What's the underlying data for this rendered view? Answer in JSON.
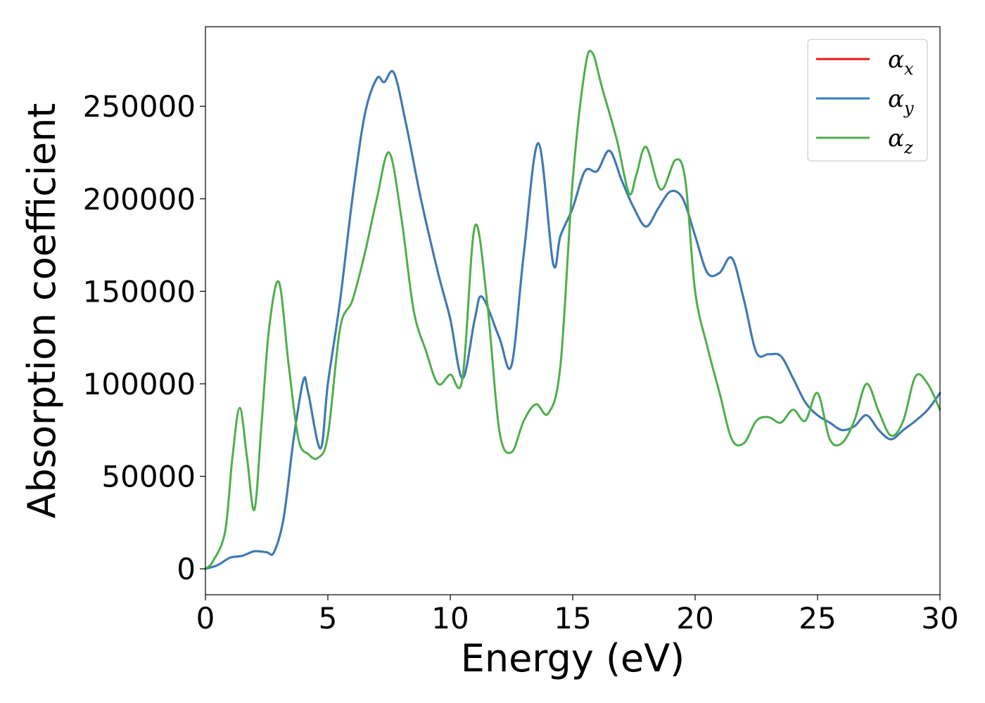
{
  "chart_data": {
    "type": "line",
    "title": "",
    "xlabel": "Energy (eV)",
    "ylabel": "Absorption coefficient",
    "xlim": [
      0,
      30
    ],
    "ylim": [
      -14000,
      293000
    ],
    "xticks": [
      0,
      5,
      10,
      15,
      20,
      25,
      30
    ],
    "yticks": [
      0,
      50000,
      100000,
      150000,
      200000,
      250000
    ],
    "grid": false,
    "legend_position": "top-right",
    "legend": [
      {
        "base": "α",
        "sub": "x",
        "color": "#e41a1c"
      },
      {
        "base": "α",
        "sub": "y",
        "color": "#377eb8"
      },
      {
        "base": "α",
        "sub": "z",
        "color": "#4daf4a"
      }
    ],
    "series": [
      {
        "name": "αx",
        "color": "#e41a1c",
        "x": [
          0.0,
          0.5,
          1.0,
          1.5,
          2.0,
          2.5,
          2.8,
          3.2,
          3.6,
          4.0,
          4.2,
          4.7,
          5.0,
          5.5,
          6.0,
          6.5,
          7.0,
          7.3,
          7.7,
          8.2,
          8.8,
          9.5,
          10.0,
          10.5,
          11.0,
          11.3,
          12.0,
          12.5,
          13.0,
          13.6,
          14.2,
          14.5,
          15.0,
          15.5,
          16.0,
          16.5,
          17.0,
          17.5,
          18.0,
          18.5,
          19.0,
          19.5,
          20.0,
          20.5,
          21.0,
          21.5,
          22.0,
          22.5,
          23.0,
          23.5,
          24.0,
          24.5,
          25.0,
          25.5,
          26.0,
          26.5,
          27.0,
          27.5,
          28.0,
          28.5,
          29.0,
          29.5,
          30.0
        ],
        "values": [
          0,
          2000,
          6000,
          7000,
          9500,
          9000,
          9000,
          28000,
          70000,
          102000,
          95000,
          65000,
          100000,
          145000,
          200000,
          245000,
          265000,
          263000,
          268000,
          240000,
          200000,
          160000,
          135000,
          103000,
          135000,
          147000,
          125000,
          110000,
          170000,
          230000,
          165000,
          180000,
          195000,
          215000,
          215000,
          226000,
          210000,
          195000,
          185000,
          195000,
          204000,
          200000,
          180000,
          160000,
          160000,
          168000,
          145000,
          117000,
          116000,
          115000,
          103000,
          90000,
          83000,
          79000,
          75000,
          77000,
          83000,
          75000,
          70000,
          75000,
          80000,
          86000,
          95000
        ]
      },
      {
        "name": "αy",
        "color": "#377eb8",
        "x": [
          0.0,
          0.5,
          1.0,
          1.5,
          2.0,
          2.5,
          2.8,
          3.2,
          3.6,
          4.0,
          4.2,
          4.7,
          5.0,
          5.5,
          6.0,
          6.5,
          7.0,
          7.3,
          7.7,
          8.2,
          8.8,
          9.5,
          10.0,
          10.5,
          11.0,
          11.3,
          12.0,
          12.5,
          13.0,
          13.6,
          14.2,
          14.5,
          15.0,
          15.5,
          16.0,
          16.5,
          17.0,
          17.5,
          18.0,
          18.5,
          19.0,
          19.5,
          20.0,
          20.5,
          21.0,
          21.5,
          22.0,
          22.5,
          23.0,
          23.5,
          24.0,
          24.5,
          25.0,
          25.5,
          26.0,
          26.5,
          27.0,
          27.5,
          28.0,
          28.5,
          29.0,
          29.5,
          30.0
        ],
        "values": [
          0,
          2000,
          6000,
          7000,
          9500,
          9000,
          9000,
          28000,
          70000,
          102000,
          95000,
          65000,
          100000,
          145000,
          200000,
          245000,
          265000,
          263000,
          268000,
          240000,
          200000,
          160000,
          135000,
          103000,
          135000,
          147000,
          125000,
          110000,
          170000,
          230000,
          165000,
          180000,
          195000,
          215000,
          215000,
          226000,
          210000,
          195000,
          185000,
          195000,
          204000,
          200000,
          180000,
          160000,
          160000,
          168000,
          145000,
          117000,
          116000,
          115000,
          103000,
          90000,
          83000,
          79000,
          75000,
          77000,
          83000,
          75000,
          70000,
          75000,
          80000,
          86000,
          95000
        ]
      },
      {
        "name": "αz",
        "color": "#4daf4a",
        "x": [
          0.0,
          0.3,
          0.8,
          1.1,
          1.4,
          1.7,
          2.0,
          2.3,
          2.6,
          3.0,
          3.4,
          3.8,
          4.2,
          4.6,
          5.0,
          5.5,
          6.0,
          6.5,
          7.0,
          7.5,
          8.0,
          8.5,
          9.0,
          9.5,
          10.0,
          10.5,
          11.0,
          11.5,
          12.0,
          12.5,
          13.0,
          13.5,
          14.0,
          14.5,
          15.0,
          15.5,
          15.8,
          16.2,
          16.8,
          17.3,
          17.6,
          18.0,
          18.6,
          19.2,
          19.6,
          20.0,
          20.5,
          21.0,
          21.5,
          22.0,
          22.5,
          23.0,
          23.5,
          24.0,
          24.5,
          25.0,
          25.5,
          26.0,
          26.5,
          27.0,
          27.5,
          28.0,
          28.5,
          29.0,
          29.5,
          30.0
        ],
        "values": [
          0,
          4000,
          20000,
          60000,
          87000,
          60000,
          32000,
          80000,
          130000,
          155000,
          110000,
          70000,
          62000,
          60000,
          72000,
          130000,
          145000,
          170000,
          200000,
          225000,
          190000,
          140000,
          118000,
          100000,
          105000,
          103000,
          185000,
          145000,
          75000,
          63000,
          80000,
          89000,
          84000,
          110000,
          210000,
          270000,
          279000,
          260000,
          232000,
          203000,
          213000,
          228000,
          205000,
          221000,
          210000,
          150000,
          120000,
          95000,
          70000,
          68000,
          80000,
          82000,
          79000,
          86000,
          80000,
          95000,
          70000,
          68000,
          80000,
          100000,
          85000,
          72000,
          80000,
          104000,
          100000,
          86000
        ]
      }
    ]
  }
}
